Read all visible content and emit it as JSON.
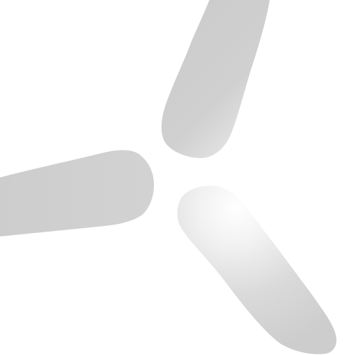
{
  "scene": {
    "subject": "fan-blades-icon",
    "background_color": "#ffffff",
    "blade_color_light": "#ffffff",
    "blade_color_mid": "#e6e6e6",
    "blade_color_dark": "#cfcfcf",
    "blade_count": 3
  }
}
